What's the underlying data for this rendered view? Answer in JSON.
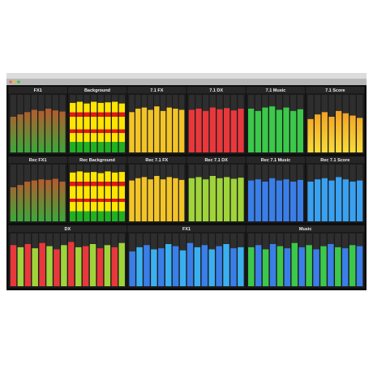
{
  "rows": [
    {
      "panels": [
        {
          "label": "FX1",
          "style": "gradient",
          "colors": [
            "#e0402a",
            "#3aa83a"
          ],
          "levels": [
            62,
            66,
            70,
            74,
            72,
            76,
            73,
            71
          ]
        },
        {
          "label": "Background",
          "style": "stripes",
          "colors": [
            "#e01818",
            "#ffe600",
            "#22b022"
          ],
          "levels": [
            86,
            88,
            85,
            88,
            86,
            87,
            88,
            85
          ]
        },
        {
          "label": "7.1 FX",
          "style": "solid",
          "colors": [
            "#f2c428"
          ],
          "levels": [
            70,
            76,
            78,
            74,
            80,
            72,
            78,
            76,
            74
          ]
        },
        {
          "label": "7.1 DX",
          "style": "solid",
          "colors": [
            "#e8383c"
          ],
          "levels": [
            74,
            76,
            72,
            78,
            75,
            77,
            73,
            76
          ]
        },
        {
          "label": "7.1 Music",
          "style": "solid",
          "colors": [
            "#3cc84a"
          ],
          "levels": [
            76,
            72,
            78,
            80,
            74,
            78,
            72,
            75
          ]
        },
        {
          "label": "7.1 Score",
          "style": "gradient",
          "colors": [
            "#f08a1c",
            "#f7dc3a"
          ],
          "levels": [
            58,
            66,
            70,
            62,
            72,
            68,
            64,
            60
          ]
        }
      ]
    },
    {
      "panels": [
        {
          "label": "Rec FX1",
          "style": "gradient",
          "colors": [
            "#e0402a",
            "#3aa83a"
          ],
          "levels": [
            60,
            64,
            70,
            72,
            74,
            73,
            75,
            70
          ]
        },
        {
          "label": "Rec Background",
          "style": "stripes",
          "colors": [
            "#e01818",
            "#ffe600",
            "#22b022"
          ],
          "levels": [
            86,
            88,
            86,
            87,
            85,
            88,
            86,
            87
          ]
        },
        {
          "label": "Rec 7.1 FX",
          "style": "solid",
          "colors": [
            "#f2c428"
          ],
          "levels": [
            72,
            76,
            78,
            74,
            80,
            74,
            78,
            76,
            73
          ]
        },
        {
          "label": "Rec 7.1 DX",
          "style": "solid",
          "colors": [
            "#9fd43a"
          ],
          "levels": [
            76,
            78,
            74,
            80,
            76,
            78,
            75,
            77
          ]
        },
        {
          "label": "Rec 7.1 Music",
          "style": "solid",
          "colors": [
            "#3a7ee8"
          ],
          "levels": [
            72,
            74,
            70,
            76,
            72,
            74,
            70,
            73
          ]
        },
        {
          "label": "Rec 7.1 Score",
          "style": "solid",
          "colors": [
            "#3aa0f0"
          ],
          "levels": [
            70,
            74,
            76,
            72,
            78,
            74,
            70,
            72
          ]
        }
      ]
    },
    {
      "panels": [
        {
          "label": "DX",
          "style": "solid",
          "colors": [
            "#e8383c",
            "#9fd43a"
          ],
          "levels": [
            78,
            74,
            80,
            72,
            82,
            76,
            70,
            78,
            84,
            74,
            76,
            80,
            72,
            78,
            74,
            82
          ]
        },
        {
          "label": "FX1",
          "style": "solid",
          "colors": [
            "#3a7ee8",
            "#3ab0f0"
          ],
          "levels": [
            66,
            74,
            78,
            70,
            72,
            80,
            76,
            68,
            82,
            74,
            78,
            70,
            76,
            80,
            72,
            74
          ]
        },
        {
          "label": "Music",
          "style": "solid",
          "colors": [
            "#3cc84a",
            "#3a7ee8"
          ],
          "levels": [
            74,
            78,
            70,
            80,
            76,
            72,
            82,
            74,
            78,
            70,
            76,
            80,
            74,
            72,
            78,
            76
          ]
        }
      ]
    }
  ]
}
